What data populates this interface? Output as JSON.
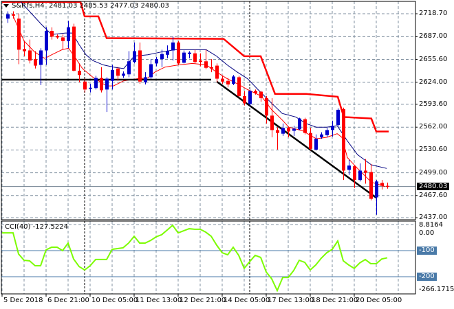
{
  "header": {
    "symbol": "S&P.fs,H4",
    "ohlc": "2481.03 2485.53 2477.03 2480.03"
  },
  "colors": {
    "bull": "#0000cc",
    "bear": "#ff0000",
    "ma_fast": "#ff0000",
    "ma_slow": "#000080",
    "envelope": "#ff0000",
    "cci": "#7cfc00",
    "levels": "#4a7aa8"
  },
  "price_axis": {
    "labels": [
      "2718.70",
      "2687.00",
      "2655.60",
      "2624.00",
      "2593.60",
      "2562.00",
      "2530.60",
      "2499.00",
      "2467.60",
      "2437.00"
    ],
    "current_price": "2480.03",
    "range": [
      2437.0,
      2718.7
    ]
  },
  "time_axis": {
    "labels": [
      {
        "bar": -1,
        "text": "5 Dec 2018"
      },
      {
        "bar": 7,
        "text": "6 Dec 21:00"
      },
      {
        "bar": 15,
        "text": "10 Dec 05:00"
      },
      {
        "bar": 23,
        "text": "11 Dec 13:00"
      },
      {
        "bar": 31,
        "text": "12 Dec 21:00"
      },
      {
        "bar": 39,
        "text": "14 Dec 05:00"
      },
      {
        "bar": 47,
        "text": "17 Dec 13:00"
      },
      {
        "bar": 55,
        "text": "18 Dec 21:00"
      },
      {
        "bar": 63,
        "text": "20 Dec 05:00"
      }
    ],
    "separators": [
      14,
      44
    ]
  },
  "candles": [
    [
      2712,
      2722,
      2706,
      2718
    ],
    [
      2718,
      2722,
      2712,
      2716
    ],
    [
      2712,
      2719,
      2649,
      2669
    ],
    [
      2670,
      2681,
      2660,
      2667
    ],
    [
      2668,
      2683,
      2650,
      2654
    ],
    [
      2656,
      2667,
      2643,
      2647
    ],
    [
      2648,
      2671,
      2620,
      2668
    ],
    [
      2668,
      2700,
      2648,
      2695
    ],
    [
      2695,
      2700,
      2683,
      2687
    ],
    [
      2688,
      2690,
      2684,
      2686
    ],
    [
      2686,
      2690,
      2669,
      2681
    ],
    [
      2681,
      2709,
      2671,
      2700
    ],
    [
      2701,
      2705,
      2639,
      2640
    ],
    [
      2640,
      2650,
      2624,
      2634
    ],
    [
      2625,
      2629,
      2610,
      2614
    ],
    [
      2615.5,
      2622,
      2610,
      2616.5
    ],
    [
      2616,
      2633,
      2614,
      2630
    ],
    [
      2630,
      2645,
      2610,
      2613
    ],
    [
      2614,
      2631,
      2583,
      2629
    ],
    [
      2626,
      2648,
      2614,
      2641
    ],
    [
      2643,
      2645,
      2626,
      2633
    ],
    [
      2633,
      2639,
      2630,
      2636
    ],
    [
      2635,
      2667,
      2631,
      2653
    ],
    [
      2652,
      2679,
      2650,
      2667
    ],
    [
      2668,
      2679,
      2622,
      2625
    ],
    [
      2624,
      2638,
      2621,
      2631
    ],
    [
      2631,
      2656,
      2629,
      2649
    ],
    [
      2650,
      2659,
      2646,
      2656
    ],
    [
      2656,
      2669,
      2645,
      2663
    ],
    [
      2662,
      2675,
      2657,
      2667
    ],
    [
      2668,
      2687,
      2654,
      2679
    ],
    [
      2679,
      2681,
      2648,
      2650
    ],
    [
      2651,
      2668,
      2650,
      2665
    ],
    [
      2663,
      2667,
      2657,
      2665
    ],
    [
      2664,
      2669,
      2650,
      2652
    ],
    [
      2654,
      2664,
      2646,
      2652
    ],
    [
      2653,
      2669,
      2642,
      2644
    ],
    [
      2645,
      2656,
      2638,
      2643
    ],
    [
      2647,
      2650,
      2624,
      2629
    ],
    [
      2629,
      2633,
      2622,
      2625
    ],
    [
      2626,
      2630,
      2617,
      2621
    ],
    [
      2622,
      2634,
      2620,
      2632
    ],
    [
      2631,
      2633,
      2603,
      2605
    ],
    [
      2605,
      2612,
      2592,
      2595
    ],
    [
      2594,
      2614,
      2591,
      2612
    ],
    [
      2612,
      2614,
      2607,
      2609
    ],
    [
      2611,
      2612,
      2597,
      2602
    ],
    [
      2602,
      2605,
      2567,
      2578
    ],
    [
      2578,
      2602,
      2548,
      2558
    ],
    [
      2558,
      2562,
      2531,
      2554
    ],
    [
      2553,
      2567,
      2550,
      2561
    ],
    [
      2561,
      2563,
      2548,
      2556
    ],
    [
      2557,
      2564,
      2550,
      2560
    ],
    [
      2559,
      2575,
      2558,
      2574
    ],
    [
      2573,
      2575,
      2552,
      2554
    ],
    [
      2554,
      2561,
      2530,
      2532
    ],
    [
      2531,
      2552,
      2530,
      2546
    ],
    [
      2548,
      2555,
      2546,
      2552
    ],
    [
      2551,
      2561,
      2548,
      2558
    ],
    [
      2558,
      2571,
      2549,
      2564
    ],
    [
      2565,
      2588,
      2562,
      2586
    ],
    [
      2587,
      2589,
      2489,
      2502
    ],
    [
      2503,
      2517,
      2496,
      2509
    ],
    [
      2508,
      2509,
      2478,
      2489
    ],
    [
      2489,
      2512,
      2487,
      2502
    ],
    [
      2502,
      2518,
      2484,
      2499
    ],
    [
      2500,
      2511,
      2461,
      2463
    ],
    [
      2465,
      2489,
      2441,
      2487
    ],
    [
      2485,
      2489,
      2476,
      2481
    ],
    [
      2481.03,
      2485.53,
      2477.03,
      2480.03
    ]
  ],
  "lines": {
    "envelope_upper": [
      [
        -1,
        2735
      ],
      [
        13.25,
        2735
      ],
      [
        14,
        2715
      ],
      [
        16.5,
        2715
      ],
      [
        18,
        2685
      ],
      [
        39.25,
        2684
      ],
      [
        43,
        2660
      ],
      [
        46,
        2660
      ],
      [
        48.6,
        2608
      ],
      [
        54.25,
        2608
      ],
      [
        60,
        2604
      ],
      [
        61.1,
        2576
      ],
      [
        66.1,
        2574
      ],
      [
        67,
        2556
      ],
      [
        69.25,
        2556
      ]
    ],
    "ma_slow": [
      [
        2.4,
        2735
      ],
      [
        6.1,
        2704.5
      ],
      [
        8,
        2690
      ],
      [
        10.5,
        2692
      ],
      [
        11.75,
        2692
      ],
      [
        13,
        2676
      ],
      [
        14.25,
        2662
      ],
      [
        15.5,
        2654
      ],
      [
        17.4,
        2648
      ],
      [
        19.25,
        2645
      ],
      [
        21.1,
        2643
      ],
      [
        23,
        2660
      ],
      [
        25.5,
        2662
      ],
      [
        28,
        2666
      ],
      [
        30.5,
        2669
      ],
      [
        36.1,
        2669
      ],
      [
        38,
        2660
      ],
      [
        39.9,
        2648
      ],
      [
        41.75,
        2638
      ],
      [
        43.6,
        2629
      ],
      [
        45.5,
        2614
      ],
      [
        48,
        2595
      ],
      [
        49.9,
        2581
      ],
      [
        52.4,
        2576
      ],
      [
        54.25,
        2567
      ],
      [
        56.1,
        2562
      ],
      [
        58,
        2562
      ],
      [
        59.9,
        2564
      ],
      [
        61.75,
        2543
      ],
      [
        63.6,
        2524
      ],
      [
        66.1,
        2510
      ],
      [
        68.9,
        2505
      ]
    ],
    "ma_fast": [
      [
        1.1,
        2714
      ],
      [
        3,
        2681
      ],
      [
        4.9,
        2666
      ],
      [
        6.75,
        2657
      ],
      [
        8,
        2662
      ],
      [
        9.9,
        2669
      ],
      [
        11.1,
        2671
      ],
      [
        12.4,
        2657
      ],
      [
        13.6,
        2643
      ],
      [
        15.5,
        2631
      ],
      [
        18,
        2619
      ],
      [
        19.25,
        2619
      ],
      [
        21.1,
        2626
      ],
      [
        23.6,
        2629
      ],
      [
        25.5,
        2630
      ],
      [
        26.75,
        2638
      ],
      [
        28.6,
        2645
      ],
      [
        31.1,
        2648
      ],
      [
        33.6,
        2650
      ],
      [
        36.1,
        2648
      ],
      [
        38,
        2638
      ],
      [
        39.9,
        2629
      ],
      [
        41.75,
        2622
      ],
      [
        43.6,
        2614
      ],
      [
        46.1,
        2605
      ],
      [
        48,
        2586
      ],
      [
        49.9,
        2572
      ],
      [
        51.1,
        2562
      ],
      [
        53.6,
        2557
      ],
      [
        56.1,
        2546
      ],
      [
        58,
        2548
      ],
      [
        59.9,
        2553
      ],
      [
        60.75,
        2548
      ],
      [
        61.75,
        2520
      ],
      [
        63.6,
        2505
      ],
      [
        66.1,
        2486
      ],
      [
        68.6,
        2480
      ]
    ],
    "support_horizontal": [
      [
        -1,
        2627.7
      ],
      [
        37,
        2627.7
      ]
    ],
    "trendline": [
      [
        38,
        2625
      ],
      [
        67,
        2464.5
      ]
    ]
  },
  "cci": {
    "label": "CCI(40) -127.5224",
    "axis_top": "8.8164",
    "axis_zero": "0.00",
    "axis_bottom": "-266.1715",
    "levels": [
      "-100",
      "-200"
    ],
    "range": [
      -266.1715,
      8.8164
    ],
    "values": [
      -32,
      -32,
      -113,
      -137,
      -139,
      -158,
      -158,
      -97,
      -87,
      -87,
      -100,
      -71,
      -132,
      -161,
      -174,
      -158,
      -134,
      -134,
      -134,
      -95,
      -92,
      -89,
      -71,
      -45,
      -71,
      -71,
      -61,
      -47,
      -39,
      -21,
      -3,
      -32,
      -24,
      -16,
      -18,
      -18,
      -29,
      -45,
      -79,
      -108,
      -116,
      -87,
      -118,
      -168,
      -142,
      -118,
      -126,
      -182,
      -208,
      -253,
      -203,
      -203,
      -176,
      -137,
      -145,
      -174,
      -155,
      -129,
      -108,
      -95,
      -63,
      -139,
      -155,
      -168,
      -147,
      -134,
      -150,
      -150,
      -132,
      -127.5
    ]
  }
}
